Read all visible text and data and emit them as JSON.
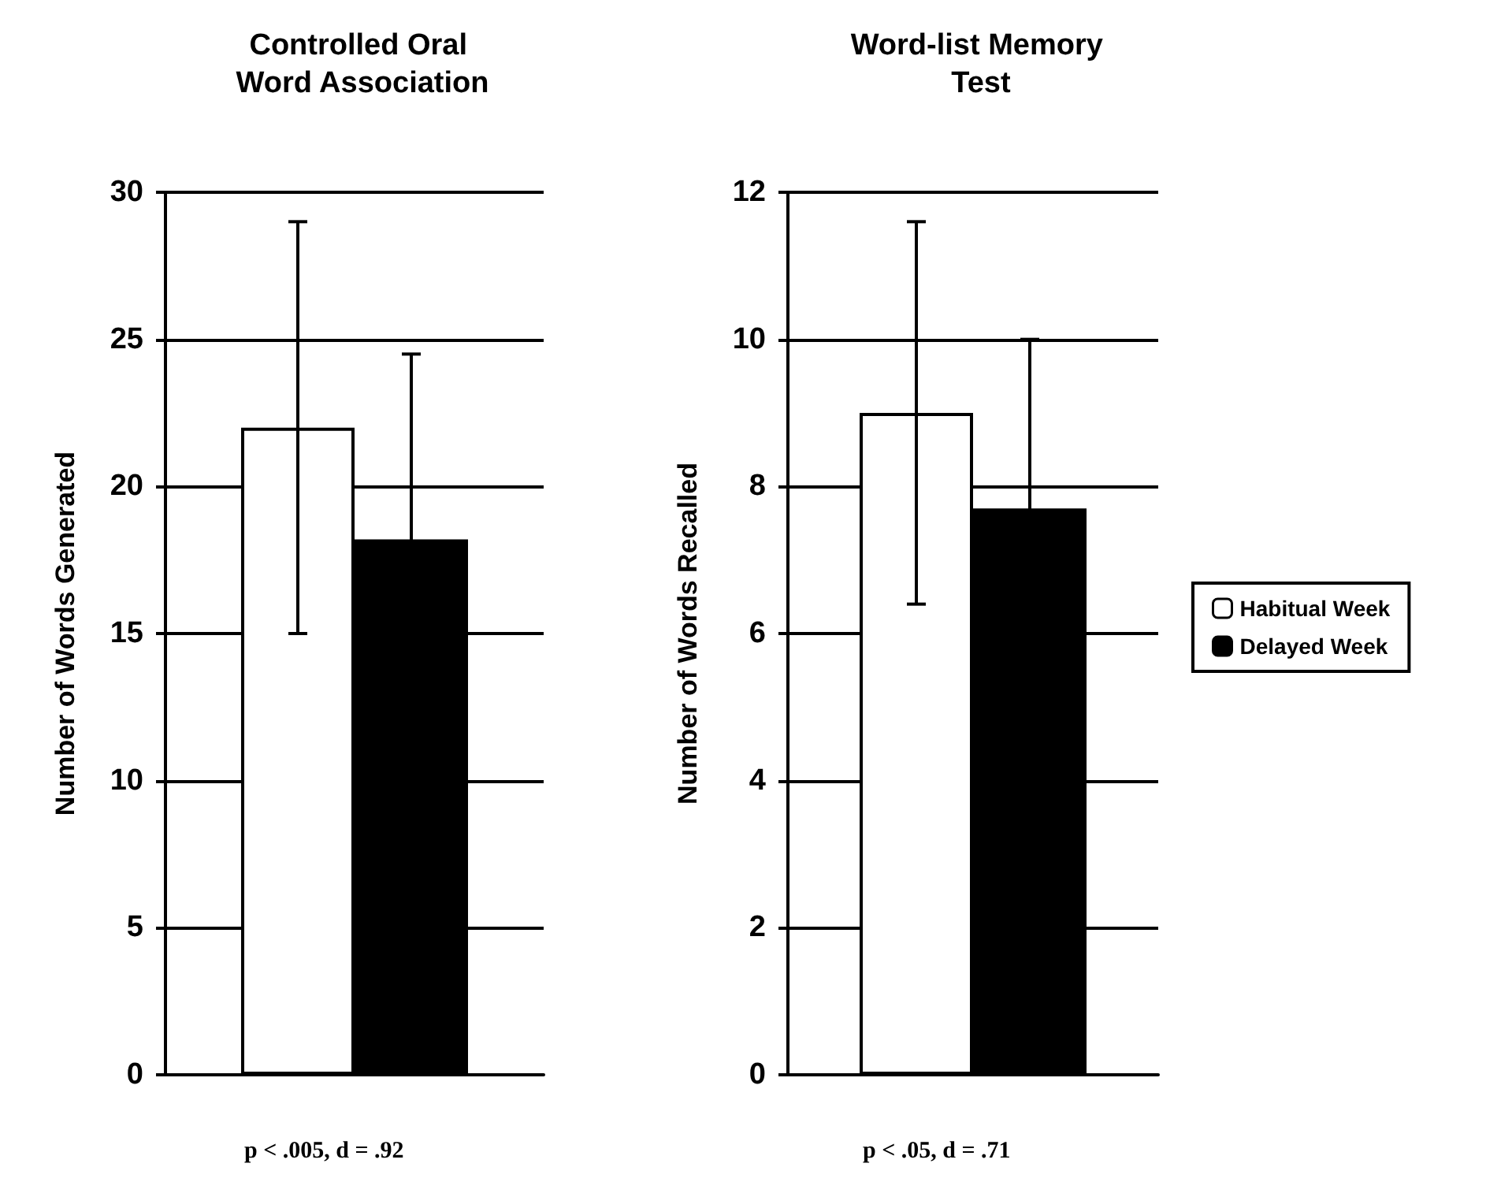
{
  "chart_data": [
    {
      "type": "bar",
      "title": "Controlled Oral Word Association",
      "ylabel": "Number of Words Generated",
      "categories": [
        null
      ],
      "series": [
        {
          "color": "#ffffff",
          "values": [
            22.0
          ],
          "errors": [
            7.0
          ]
        },
        {
          "color": "#000000",
          "values": [
            18.2
          ],
          "errors": [
            6.3
          ]
        }
      ],
      "ylim": [
        0,
        30
      ],
      "yticks": [
        0,
        5,
        10,
        15,
        20,
        25,
        30
      ],
      "grid": "y",
      "tick_labels": "y",
      "legend": false,
      "annotations": [
        "p < .005, d = .92"
      ]
    },
    {
      "type": "bar",
      "title": "Word-list Memory Test",
      "ylabel": "Number of Words Recalled",
      "categories": [
        null
      ],
      "series": [
        {
          "name": "Habitual Week",
          "color": "#ffffff",
          "values": [
            9.0
          ],
          "errors": [
            2.6
          ]
        },
        {
          "name": "Delayed Week",
          "color": "#000000",
          "values": [
            7.7
          ],
          "errors": [
            2.3
          ]
        }
      ],
      "ylim": [
        0,
        12
      ],
      "yticks": [
        0,
        2,
        4,
        6,
        8,
        10,
        12
      ],
      "grid": "y",
      "tick_labels": "y",
      "legend": "right",
      "annotations": [
        "p < .05, d = .71"
      ]
    }
  ]
}
